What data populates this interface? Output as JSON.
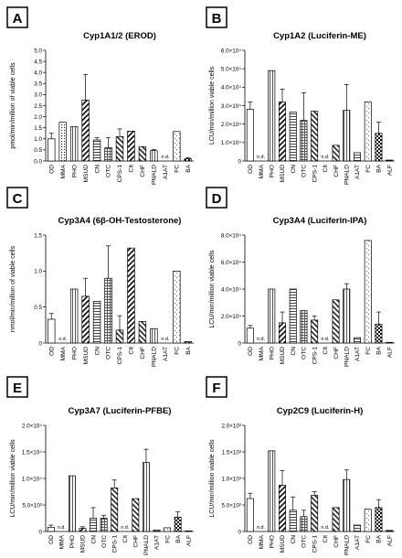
{
  "chart_data": [
    {
      "type": "bar",
      "panel_label": "A",
      "title": "Cyp1A1/2 (EROD)",
      "ylabel": "pmol/min/million of viable cells",
      "ylim": [
        0,
        5.0
      ],
      "yticks": [
        "0.0",
        "0.5",
        "1.0",
        "1.5",
        "2.0",
        "2.5",
        "3.0",
        "3.5",
        "4.0",
        "4.5",
        "5.0"
      ],
      "categories": [
        "OD",
        "MMA",
        "PHO",
        "MSUD",
        "CN",
        "OTC",
        "CPS-1",
        "CIt",
        "CHF",
        "PNALD",
        "A1AT",
        "FC",
        "BA"
      ],
      "values": [
        1.0,
        1.75,
        1.55,
        2.75,
        0.95,
        0.6,
        1.1,
        1.35,
        0.65,
        0.47,
        null,
        1.33,
        0.1
      ],
      "errors": [
        0.25,
        0,
        0,
        1.15,
        0.1,
        0.45,
        0.35,
        0,
        0,
        0.05,
        0,
        0,
        0.05
      ],
      "annotations": [
        {
          "category": "A1AT",
          "text": "n.d."
        }
      ]
    },
    {
      "type": "bar",
      "panel_label": "B",
      "title": "Cyp1A2 (Luciferin-ME)",
      "ylabel": "LCU/min/million viable cells",
      "ylim": [
        0,
        60000
      ],
      "yticks": [
        "0",
        "1.0×10⁴",
        "2.0×10⁴",
        "3.0×10⁴",
        "4.0×10⁴",
        "5.0×10⁴",
        "6.0×10⁴"
      ],
      "categories": [
        "OD",
        "MMA",
        "PHO",
        "MSUD",
        "CN",
        "OTC",
        "CPS-1",
        "CIt",
        "CHF",
        "PNALD",
        "A1AT",
        "FC",
        "BA",
        "ALF"
      ],
      "values": [
        28000,
        null,
        49000,
        32000,
        26500,
        22000,
        27000,
        null,
        8500,
        27500,
        4500,
        32000,
        15000,
        500
      ],
      "errors": [
        4000,
        0,
        0,
        7000,
        0,
        15000,
        0,
        0,
        0,
        14000,
        0,
        0,
        6000,
        0
      ],
      "annotations": [
        {
          "category": "MMA",
          "text": "n.d."
        },
        {
          "category": "CIt",
          "text": "n.d."
        }
      ]
    },
    {
      "type": "bar",
      "panel_label": "C",
      "title": "Cyp3A4 (6β-OH-Testosterone)",
      "ylabel": "nmol/min/million of viable cells",
      "ylim": [
        0,
        1.5
      ],
      "yticks": [
        "0",
        "0.5",
        "1.0",
        "1.5"
      ],
      "categories": [
        "OD",
        "MMA",
        "PHO",
        "MSUD",
        "CN",
        "OTC",
        "CPS-1",
        "CIt",
        "CHF",
        "PNALD",
        "A1AT",
        "FC",
        "BA"
      ],
      "values": [
        0.33,
        null,
        0.75,
        0.65,
        0.58,
        0.9,
        0.18,
        1.32,
        0.3,
        0.2,
        null,
        1.0,
        0.02
      ],
      "errors": [
        0.08,
        0,
        0,
        0.25,
        0,
        0.45,
        0.2,
        0,
        0,
        0,
        0,
        0,
        0
      ],
      "annotations": [
        {
          "category": "MMA",
          "text": "n.d."
        },
        {
          "category": "A1AT",
          "text": "n.d."
        }
      ]
    },
    {
      "type": "bar",
      "panel_label": "D",
      "title": "Cyp3A4 (Luciferin-IPA)",
      "ylabel": "LCU/min/million viable cells",
      "ylim": [
        0,
        80000
      ],
      "yticks": [
        "0",
        "2.0×10⁴",
        "4.0×10⁴",
        "6.0×10⁴",
        "8.0×10⁴"
      ],
      "categories": [
        "OD",
        "MMA",
        "PHO",
        "MSUD",
        "CN",
        "OTC",
        "CPS-1",
        "CIt",
        "CHF",
        "PNALD",
        "A1AT",
        "FC",
        "BA",
        "ALF"
      ],
      "values": [
        11000,
        null,
        40000,
        15000,
        40000,
        24000,
        17000,
        null,
        32000,
        40000,
        4000,
        76000,
        14000,
        500
      ],
      "errors": [
        2000,
        0,
        0,
        8000,
        0,
        0,
        3000,
        0,
        0,
        4000,
        0,
        0,
        9000,
        0
      ],
      "annotations": [
        {
          "category": "MMA",
          "text": "n.d."
        },
        {
          "category": "CIt",
          "text": "n.d."
        }
      ]
    },
    {
      "type": "bar",
      "panel_label": "E",
      "title": "Cyp3A7 (Luciferin-PFBE)",
      "ylabel": "LCU/min/million viable cells",
      "ylim": [
        0,
        20000
      ],
      "yticks": [
        "0",
        "5.0×10³",
        "1.0×10⁴",
        "1.5×10⁴",
        "2.0×10⁴"
      ],
      "categories": [
        "OD",
        "MMA",
        "PHO",
        "MSUD",
        "CN",
        "OTC",
        "CPS-1",
        "CIt",
        "CHF",
        "PNALD",
        "A1AT",
        "FC",
        "BA",
        "ALF"
      ],
      "values": [
        800,
        null,
        10500,
        600,
        2500,
        2500,
        8200,
        null,
        6200,
        13000,
        300,
        700,
        2700,
        100
      ],
      "errors": [
        400,
        0,
        0,
        300,
        2000,
        500,
        1500,
        0,
        0,
        2500,
        0,
        0,
        1000,
        0
      ],
      "annotations": [
        {
          "category": "MMA",
          "text": "n.d."
        },
        {
          "category": "CIt",
          "text": "n.d."
        }
      ]
    },
    {
      "type": "bar",
      "panel_label": "F",
      "title": "Cyp2C9 (Luciferin-H)",
      "ylabel": "LCU/min/million viable cells",
      "ylim": [
        0,
        2000
      ],
      "yticks": [
        "0",
        "5.0×10²",
        "1.0×10³",
        "1.5×10³",
        "2.0×10³"
      ],
      "categories": [
        "OD",
        "MMA",
        "PHO",
        "MSUD",
        "CN",
        "OTC",
        "CPS-1",
        "CIt",
        "CHF",
        "PNALD",
        "A1AT",
        "FC",
        "BA",
        "ALF"
      ],
      "values": [
        620,
        null,
        1520,
        870,
        400,
        280,
        680,
        null,
        450,
        980,
        120,
        420,
        450,
        20
      ],
      "errors": [
        100,
        0,
        0,
        280,
        250,
        120,
        70,
        0,
        0,
        180,
        0,
        0,
        150,
        0
      ],
      "annotations": [
        {
          "category": "MMA",
          "text": "n.d."
        },
        {
          "category": "CIt",
          "text": "n.d."
        }
      ]
    }
  ]
}
